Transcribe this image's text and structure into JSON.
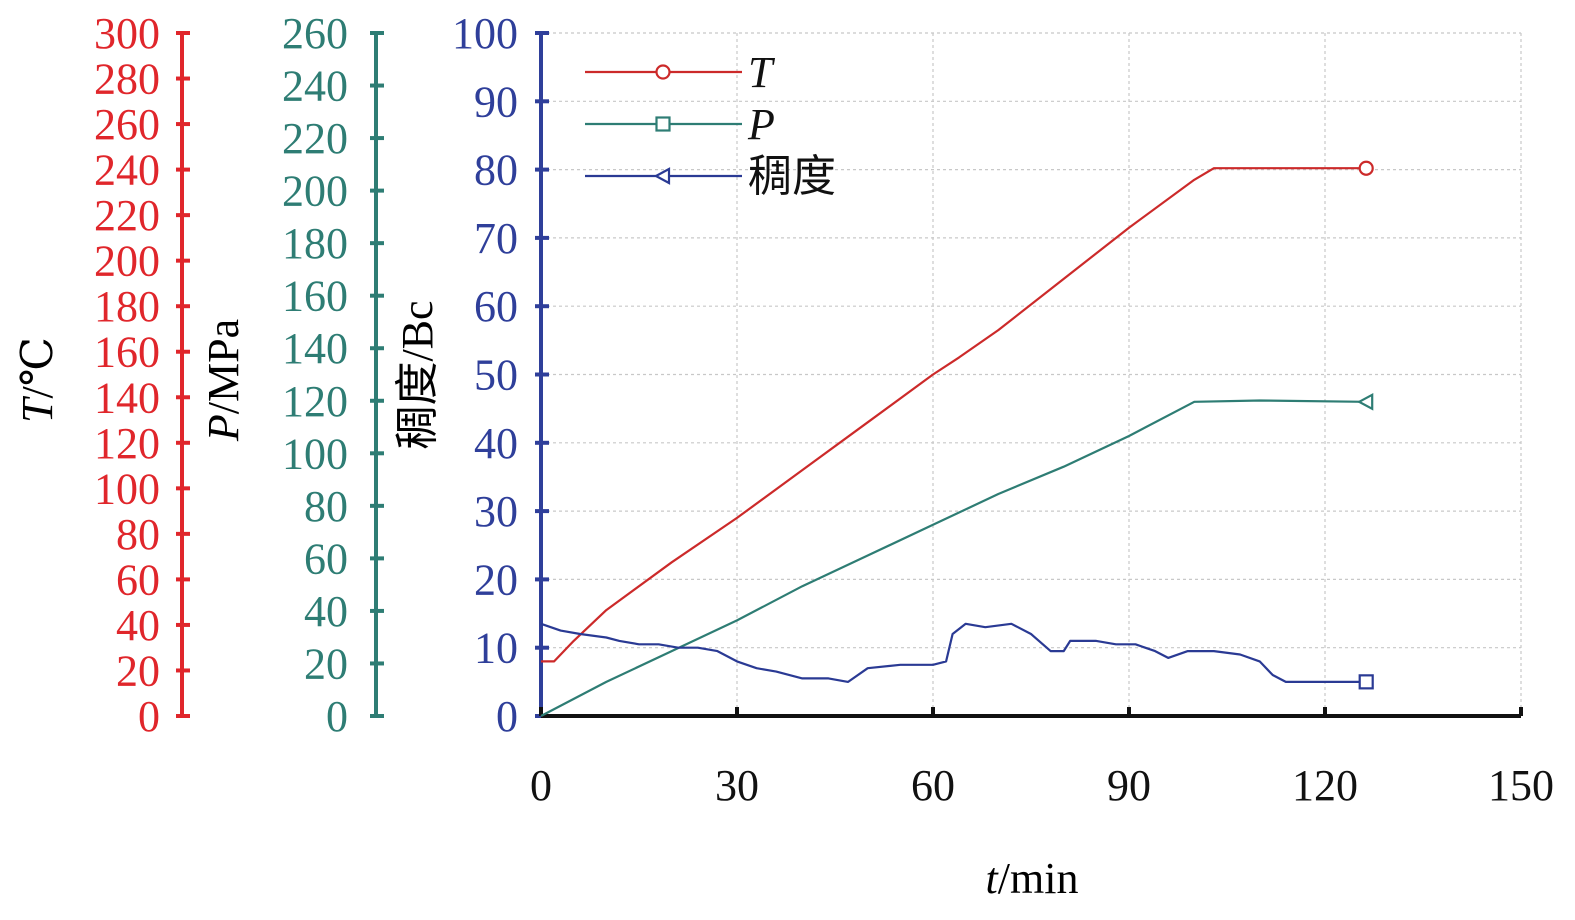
{
  "chart_data": {
    "type": "line",
    "xlabel": {
      "var": "t",
      "unit": "/min"
    },
    "x_ticks": [
      "0",
      "30",
      "60",
      "90",
      "120",
      "150"
    ],
    "xlim": [
      0,
      150
    ],
    "grid": true,
    "legend_position": "top-left",
    "axes": {
      "T": {
        "label_var": "T",
        "label_unit": "/℃",
        "color": "#e0262b",
        "ylim": [
          0,
          300
        ],
        "ticks": [
          "0",
          "20",
          "40",
          "60",
          "80",
          "100",
          "120",
          "140",
          "160",
          "180",
          "200",
          "220",
          "240",
          "260",
          "280",
          "300"
        ]
      },
      "P": {
        "label_var": "P",
        "label_unit": "/MPa",
        "color": "#2e7d74",
        "ylim": [
          0,
          260
        ],
        "ticks": [
          "0",
          "20",
          "40",
          "60",
          "80",
          "100",
          "120",
          "140",
          "160",
          "180",
          "200",
          "220",
          "240",
          "260"
        ]
      },
      "Bc": {
        "label": "稠度/Bc",
        "color": "#2f3f9a",
        "ylim": [
          0,
          100
        ],
        "ticks": [
          "0",
          "10",
          "20",
          "30",
          "40",
          "50",
          "60",
          "70",
          "80",
          "90",
          "100"
        ]
      }
    },
    "series": [
      {
        "name": "T",
        "axis": "Bc",
        "color": "#cc2a2a",
        "marker": "circle",
        "points": [
          [
            0,
            8
          ],
          [
            2,
            8
          ],
          [
            5,
            11
          ],
          [
            10,
            15.5
          ],
          [
            20,
            22.5
          ],
          [
            30,
            29
          ],
          [
            40,
            36
          ],
          [
            50,
            43
          ],
          [
            60,
            50
          ],
          [
            64,
            52.5
          ],
          [
            70,
            56.5
          ],
          [
            80,
            64
          ],
          [
            90,
            71.5
          ],
          [
            100,
            78.5
          ],
          [
            103,
            80.2
          ],
          [
            110,
            80.2
          ],
          [
            126,
            80.2
          ]
        ]
      },
      {
        "name": "P",
        "axis": "Bc",
        "color": "#2e7d74",
        "marker": "square",
        "points": [
          [
            0,
            0
          ],
          [
            10,
            5
          ],
          [
            20,
            9.5
          ],
          [
            30,
            14
          ],
          [
            40,
            19
          ],
          [
            50,
            23.5
          ],
          [
            60,
            28
          ],
          [
            70,
            32.5
          ],
          [
            80,
            36.5
          ],
          [
            90,
            41
          ],
          [
            100,
            46
          ],
          [
            110,
            46.2
          ],
          [
            126,
            46
          ]
        ]
      },
      {
        "name": "稠度",
        "axis": "Bc",
        "color": "#2a3a94",
        "marker": "triangle-left",
        "points": [
          [
            0,
            13.5
          ],
          [
            3,
            12.5
          ],
          [
            6,
            12
          ],
          [
            10,
            11.5
          ],
          [
            12,
            11
          ],
          [
            15,
            10.5
          ],
          [
            18,
            10.5
          ],
          [
            21,
            10
          ],
          [
            24,
            10
          ],
          [
            27,
            9.5
          ],
          [
            30,
            8
          ],
          [
            33,
            7
          ],
          [
            36,
            6.5
          ],
          [
            40,
            5.5
          ],
          [
            44,
            5.5
          ],
          [
            47,
            5
          ],
          [
            50,
            7
          ],
          [
            55,
            7.5
          ],
          [
            60,
            7.5
          ],
          [
            62,
            8
          ],
          [
            63,
            12
          ],
          [
            65,
            13.5
          ],
          [
            68,
            13
          ],
          [
            72,
            13.5
          ],
          [
            75,
            12
          ],
          [
            78,
            9.5
          ],
          [
            80,
            9.5
          ],
          [
            81,
            11
          ],
          [
            85,
            11
          ],
          [
            88,
            10.5
          ],
          [
            91,
            10.5
          ],
          [
            94,
            9.5
          ],
          [
            96,
            8.5
          ],
          [
            99,
            9.5
          ],
          [
            103,
            9.5
          ],
          [
            107,
            9
          ],
          [
            110,
            8
          ],
          [
            112,
            6
          ],
          [
            114,
            5
          ],
          [
            120,
            5
          ],
          [
            126,
            5
          ]
        ]
      }
    ],
    "legend": [
      {
        "series": "T",
        "label": "T",
        "italic": true
      },
      {
        "series": "P",
        "label": "P",
        "italic": true
      },
      {
        "series": "稠度",
        "label": "稠度",
        "italic": false
      }
    ]
  }
}
